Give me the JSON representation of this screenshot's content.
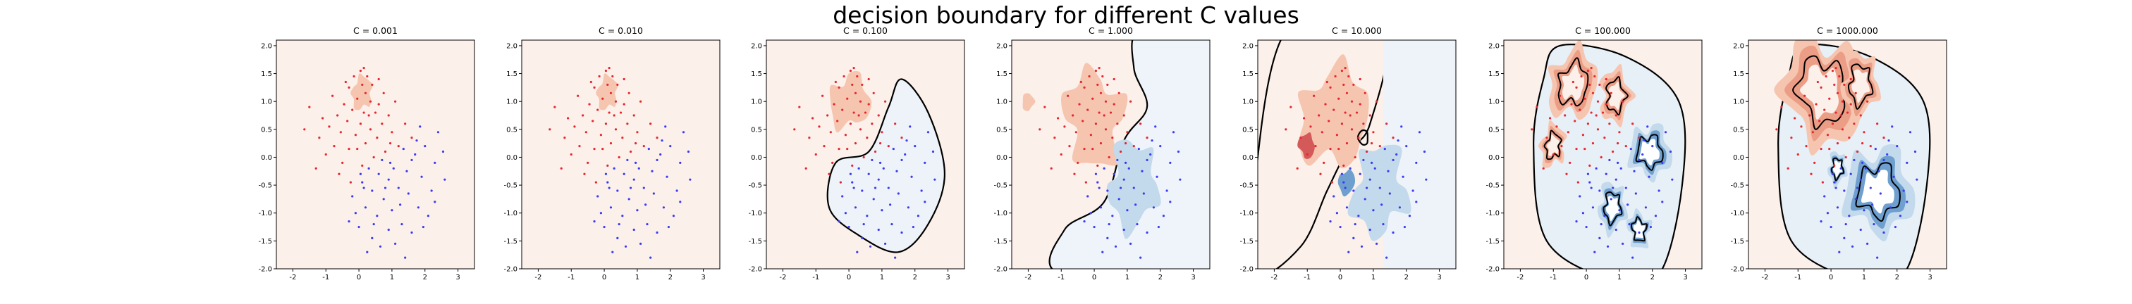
{
  "figure": {
    "suptitle": "decision boundary for different C values"
  },
  "colors": {
    "background": "#fbf0ea",
    "red_points": "#e8262e",
    "blue_points": "#3b3bf5",
    "red_region_light": "#f6c5b0",
    "red_region_mid": "#ec9d86",
    "red_region_dark": "#d45a5a",
    "blue_region_light": "#e2ecf5",
    "blue_region_mid": "#c3d9ec",
    "blue_region_dark": "#6e9fcf",
    "boundary": "#000000"
  },
  "chart_data": [
    {
      "type": "scatter",
      "title": "C = 0.001",
      "xlim": [
        -2.5,
        3.5
      ],
      "ylim": [
        -2.0,
        2.1
      ],
      "xticks": [
        "-2",
        "-1",
        "0",
        "1",
        "2",
        "3"
      ],
      "yticks": [
        "-2.0",
        "-1.5",
        "-1.0",
        "-0.5",
        "0.0",
        "0.5",
        "1.0",
        "1.5",
        "2.0"
      ],
      "decision_boundary_visible": false
    },
    {
      "type": "scatter",
      "title": "C = 0.010",
      "xlim": [
        -2.5,
        3.5
      ],
      "ylim": [
        -2.0,
        2.1
      ],
      "xticks": [
        "-2",
        "-1",
        "0",
        "1",
        "2",
        "3"
      ],
      "yticks": [
        "-2.0",
        "-1.5",
        "-1.0",
        "-0.5",
        "0.0",
        "0.5",
        "1.0",
        "1.5",
        "2.0"
      ],
      "decision_boundary_visible": false
    },
    {
      "type": "scatter",
      "title": "C = 0.100",
      "xlim": [
        -2.5,
        3.5
      ],
      "ylim": [
        -2.0,
        2.1
      ],
      "xticks": [
        "-2",
        "-1",
        "0",
        "1",
        "2",
        "3"
      ],
      "yticks": [
        "-2.0",
        "-1.5",
        "-1.0",
        "-0.5",
        "0.0",
        "0.5",
        "1.0",
        "1.5",
        "2.0"
      ],
      "decision_boundary_visible": true
    },
    {
      "type": "scatter",
      "title": "C = 1.000",
      "xlim": [
        -2.5,
        3.5
      ],
      "ylim": [
        -2.0,
        2.1
      ],
      "xticks": [
        "-2",
        "-1",
        "0",
        "1",
        "2",
        "3"
      ],
      "yticks": [
        "-2.0",
        "-1.5",
        "-1.0",
        "-0.5",
        "0.0",
        "0.5",
        "1.0",
        "1.5",
        "2.0"
      ],
      "decision_boundary_visible": true
    },
    {
      "type": "scatter",
      "title": "C = 10.000",
      "xlim": [
        -2.5,
        3.5
      ],
      "ylim": [
        -2.0,
        2.1
      ],
      "xticks": [
        "-2",
        "-1",
        "0",
        "1",
        "2",
        "3"
      ],
      "yticks": [
        "-2.0",
        "-1.5",
        "-1.0",
        "-0.5",
        "0.0",
        "0.5",
        "1.0",
        "1.5",
        "2.0"
      ],
      "decision_boundary_visible": true
    },
    {
      "type": "scatter",
      "title": "C = 100.000",
      "xlim": [
        -2.5,
        3.5
      ],
      "ylim": [
        -2.0,
        2.1
      ],
      "xticks": [
        "-2",
        "-1",
        "0",
        "1",
        "2",
        "3"
      ],
      "yticks": [
        "-2.0",
        "-1.5",
        "-1.0",
        "-0.5",
        "0.0",
        "0.5",
        "1.0",
        "1.5",
        "2.0"
      ],
      "decision_boundary_visible": true
    },
    {
      "type": "scatter",
      "title": "C = 1000.000",
      "xlim": [
        -2.5,
        3.5
      ],
      "ylim": [
        -2.0,
        2.1
      ],
      "xticks": [
        "-2",
        "-1",
        "0",
        "1",
        "2",
        "3"
      ],
      "yticks": [
        "-2.0",
        "-1.5",
        "-1.0",
        "-0.5",
        "0.0",
        "0.5",
        "1.0",
        "1.5",
        "2.0"
      ],
      "decision_boundary_visible": true
    }
  ],
  "points": {
    "red": [
      [
        0.05,
        1.55
      ],
      [
        -0.15,
        1.45
      ],
      [
        0.25,
        1.45
      ],
      [
        0.4,
        1.3
      ],
      [
        0.1,
        1.3
      ],
      [
        -0.3,
        1.25
      ],
      [
        0.2,
        1.15
      ],
      [
        -0.05,
        1.05
      ],
      [
        0.35,
        1.0
      ],
      [
        -0.45,
        0.95
      ],
      [
        0.6,
        0.95
      ],
      [
        -0.2,
        0.85
      ],
      [
        0.15,
        0.8
      ],
      [
        0.5,
        0.8
      ],
      [
        -0.65,
        0.75
      ],
      [
        0.9,
        0.75
      ],
      [
        -0.35,
        0.65
      ],
      [
        0.05,
        0.6
      ],
      [
        0.7,
        0.6
      ],
      [
        -0.9,
        0.55
      ],
      [
        0.35,
        0.5
      ],
      [
        -0.55,
        0.45
      ],
      [
        1.0,
        0.45
      ],
      [
        -0.1,
        0.4
      ],
      [
        0.55,
        0.35
      ],
      [
        -1.2,
        0.35
      ],
      [
        0.2,
        0.25
      ],
      [
        -0.75,
        0.2
      ],
      [
        1.2,
        0.2
      ],
      [
        -0.3,
        0.15
      ],
      [
        0.8,
        0.1
      ],
      [
        -1.0,
        0.05
      ],
      [
        0.45,
        0.0
      ],
      [
        -0.5,
        -0.1
      ],
      [
        0.1,
        -0.15
      ],
      [
        -1.3,
        -0.2
      ],
      [
        1.4,
        0.6
      ],
      [
        -1.5,
        0.9
      ],
      [
        0.75,
        1.15
      ],
      [
        -0.8,
        1.1
      ],
      [
        1.1,
        1.0
      ],
      [
        -0.05,
        0.15
      ],
      [
        0.3,
        0.75
      ],
      [
        -0.6,
        -0.3
      ],
      [
        1.6,
        0.35
      ],
      [
        -1.1,
        0.7
      ],
      [
        0.6,
        1.4
      ],
      [
        -0.4,
        1.35
      ],
      [
        0.95,
        0.25
      ],
      [
        -0.25,
        -0.45
      ],
      [
        0.15,
        1.6
      ],
      [
        -1.65,
        0.5
      ]
    ],
    "blue": [
      [
        0.3,
        -0.2
      ],
      [
        0.6,
        -0.3
      ],
      [
        0.1,
        -0.45
      ],
      [
        0.9,
        -0.4
      ],
      [
        1.2,
        -0.55
      ],
      [
        0.4,
        -0.6
      ],
      [
        -0.2,
        -0.7
      ],
      [
        0.75,
        -0.75
      ],
      [
        1.5,
        -0.65
      ],
      [
        0.2,
        -0.9
      ],
      [
        1.0,
        -0.95
      ],
      [
        -0.1,
        -1.0
      ],
      [
        1.8,
        -0.9
      ],
      [
        0.55,
        -1.05
      ],
      [
        1.3,
        -1.2
      ],
      [
        0.0,
        -1.25
      ],
      [
        0.9,
        -1.3
      ],
      [
        1.6,
        -1.35
      ],
      [
        0.4,
        -1.45
      ],
      [
        1.1,
        -1.55
      ],
      [
        1.45,
        -0.25
      ],
      [
        1.9,
        -0.35
      ],
      [
        2.2,
        -0.6
      ],
      [
        1.7,
        0.05
      ],
      [
        2.0,
        0.2
      ],
      [
        2.3,
        -0.1
      ],
      [
        1.35,
        0.15
      ],
      [
        0.7,
        -0.05
      ],
      [
        2.4,
        0.45
      ],
      [
        1.85,
        0.55
      ],
      [
        2.1,
        -1.05
      ],
      [
        0.25,
        -1.7
      ],
      [
        0.8,
        -0.55
      ],
      [
        1.25,
        -0.85
      ],
      [
        0.05,
        -0.3
      ],
      [
        1.6,
        -0.05
      ],
      [
        2.55,
        0.1
      ],
      [
        0.45,
        -1.2
      ],
      [
        1.95,
        -1.25
      ],
      [
        -0.3,
        -1.15
      ],
      [
        1.05,
        -0.2
      ],
      [
        2.3,
        -0.8
      ],
      [
        0.65,
        -1.6
      ],
      [
        1.4,
        -1.8
      ],
      [
        2.6,
        -0.4
      ],
      [
        0.15,
        -0.55
      ],
      [
        1.75,
        0.3
      ],
      [
        0.95,
        -0.1
      ]
    ]
  }
}
